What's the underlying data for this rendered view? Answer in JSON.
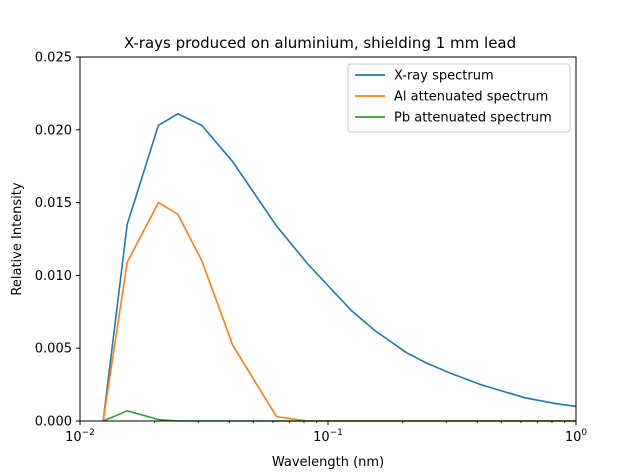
{
  "chart_data": {
    "type": "line",
    "title": "X-rays produced on aluminium, shielding 1 mm lead",
    "xlabel": "Wavelength (nm)",
    "ylabel": "Relative Intensity",
    "xscale": "log",
    "xlim": [
      0.01,
      1
    ],
    "ylim": [
      0,
      0.025
    ],
    "grid": false,
    "legend_position": "top-right",
    "x_ticks": [
      {
        "value": 0.01,
        "base": "10",
        "exp": "−2"
      },
      {
        "value": 0.1,
        "base": "10",
        "exp": "−1"
      },
      {
        "value": 1,
        "base": "10",
        "exp": "0"
      }
    ],
    "y_ticks": [
      {
        "value": 0,
        "label": "0.000"
      },
      {
        "value": 0.005,
        "label": "0.005"
      },
      {
        "value": 0.01,
        "label": "0.010"
      },
      {
        "value": 0.015,
        "label": "0.015"
      },
      {
        "value": 0.02,
        "label": "0.020"
      },
      {
        "value": 0.025,
        "label": "0.025"
      }
    ],
    "series": [
      {
        "name": "X-ray spectrum",
        "color": "#1f77b4",
        "x": [
          0.0124,
          0.0155,
          0.0207,
          0.0248,
          0.031,
          0.0413,
          0.062,
          0.0827,
          0.124,
          0.155,
          0.207,
          0.248,
          0.31,
          0.413,
          0.62,
          0.827,
          1.0
        ],
        "y": [
          0.0,
          0.0135,
          0.0203,
          0.0211,
          0.0203,
          0.0178,
          0.0134,
          0.0108,
          0.0076,
          0.0062,
          0.0047,
          0.004,
          0.0033,
          0.0025,
          0.0016,
          0.0012,
          0.001
        ]
      },
      {
        "name": "Al attenuated spectrum",
        "color": "#ff7f0e",
        "x": [
          0.0124,
          0.0155,
          0.0207,
          0.0248,
          0.031,
          0.0413,
          0.062,
          0.0827,
          0.124,
          0.207,
          0.413,
          1.0
        ],
        "y": [
          0.0,
          0.0109,
          0.015,
          0.0142,
          0.011,
          0.0052,
          0.0003,
          0.0,
          0.0,
          0.0,
          0.0,
          0.0
        ]
      },
      {
        "name": "Pb attenuated spectrum",
        "color": "#2ca02c",
        "x": [
          0.0124,
          0.0155,
          0.0207,
          0.0248,
          0.031,
          0.0413,
          0.062,
          0.124,
          0.413,
          1.0
        ],
        "y": [
          0.0,
          0.0007,
          0.0001,
          0.0,
          0.0,
          0.0,
          0.0,
          0.0,
          0.0,
          0.0
        ]
      }
    ]
  }
}
